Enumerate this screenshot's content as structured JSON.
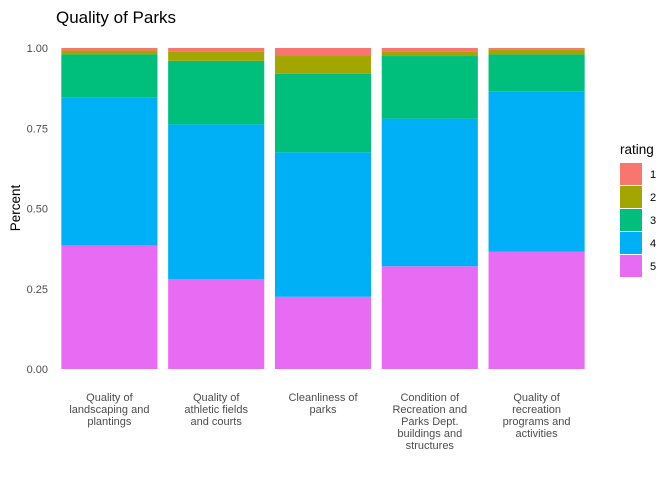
{
  "chart_data": {
    "type": "bar",
    "stacked": true,
    "title": "Quality of Parks",
    "xlabel": "",
    "ylabel": "Percent",
    "ylim": [
      0,
      1
    ],
    "yticks": [
      "0.00",
      "0.25",
      "0.50",
      "0.75",
      "1.00"
    ],
    "categories": [
      [
        "Quality of",
        "landscaping and",
        "plantings"
      ],
      [
        "Quality of",
        "athletic fields",
        "and courts"
      ],
      [
        "Cleanliness of",
        "parks"
      ],
      [
        "Condition of",
        "Recreation and",
        "Parks Dept.",
        "buildings and",
        "structures"
      ],
      [
        "Quality of",
        "recreation",
        "programs and",
        "activities"
      ]
    ],
    "legend": {
      "title": "rating",
      "position": "right"
    },
    "series": [
      {
        "name": "5",
        "color": "#E76BF3",
        "values": [
          0.385,
          0.28,
          0.225,
          0.32,
          0.365
        ]
      },
      {
        "name": "4",
        "color": "#00B0F6",
        "values": [
          0.46,
          0.482,
          0.45,
          0.46,
          0.5
        ]
      },
      {
        "name": "3",
        "color": "#00BF7D",
        "values": [
          0.135,
          0.198,
          0.245,
          0.195,
          0.115
        ]
      },
      {
        "name": "2",
        "color": "#A3A500",
        "values": [
          0.012,
          0.03,
          0.055,
          0.015,
          0.015
        ]
      },
      {
        "name": "1",
        "color": "#F8766D",
        "values": [
          0.008,
          0.01,
          0.025,
          0.01,
          0.005
        ]
      }
    ],
    "grid": false
  }
}
